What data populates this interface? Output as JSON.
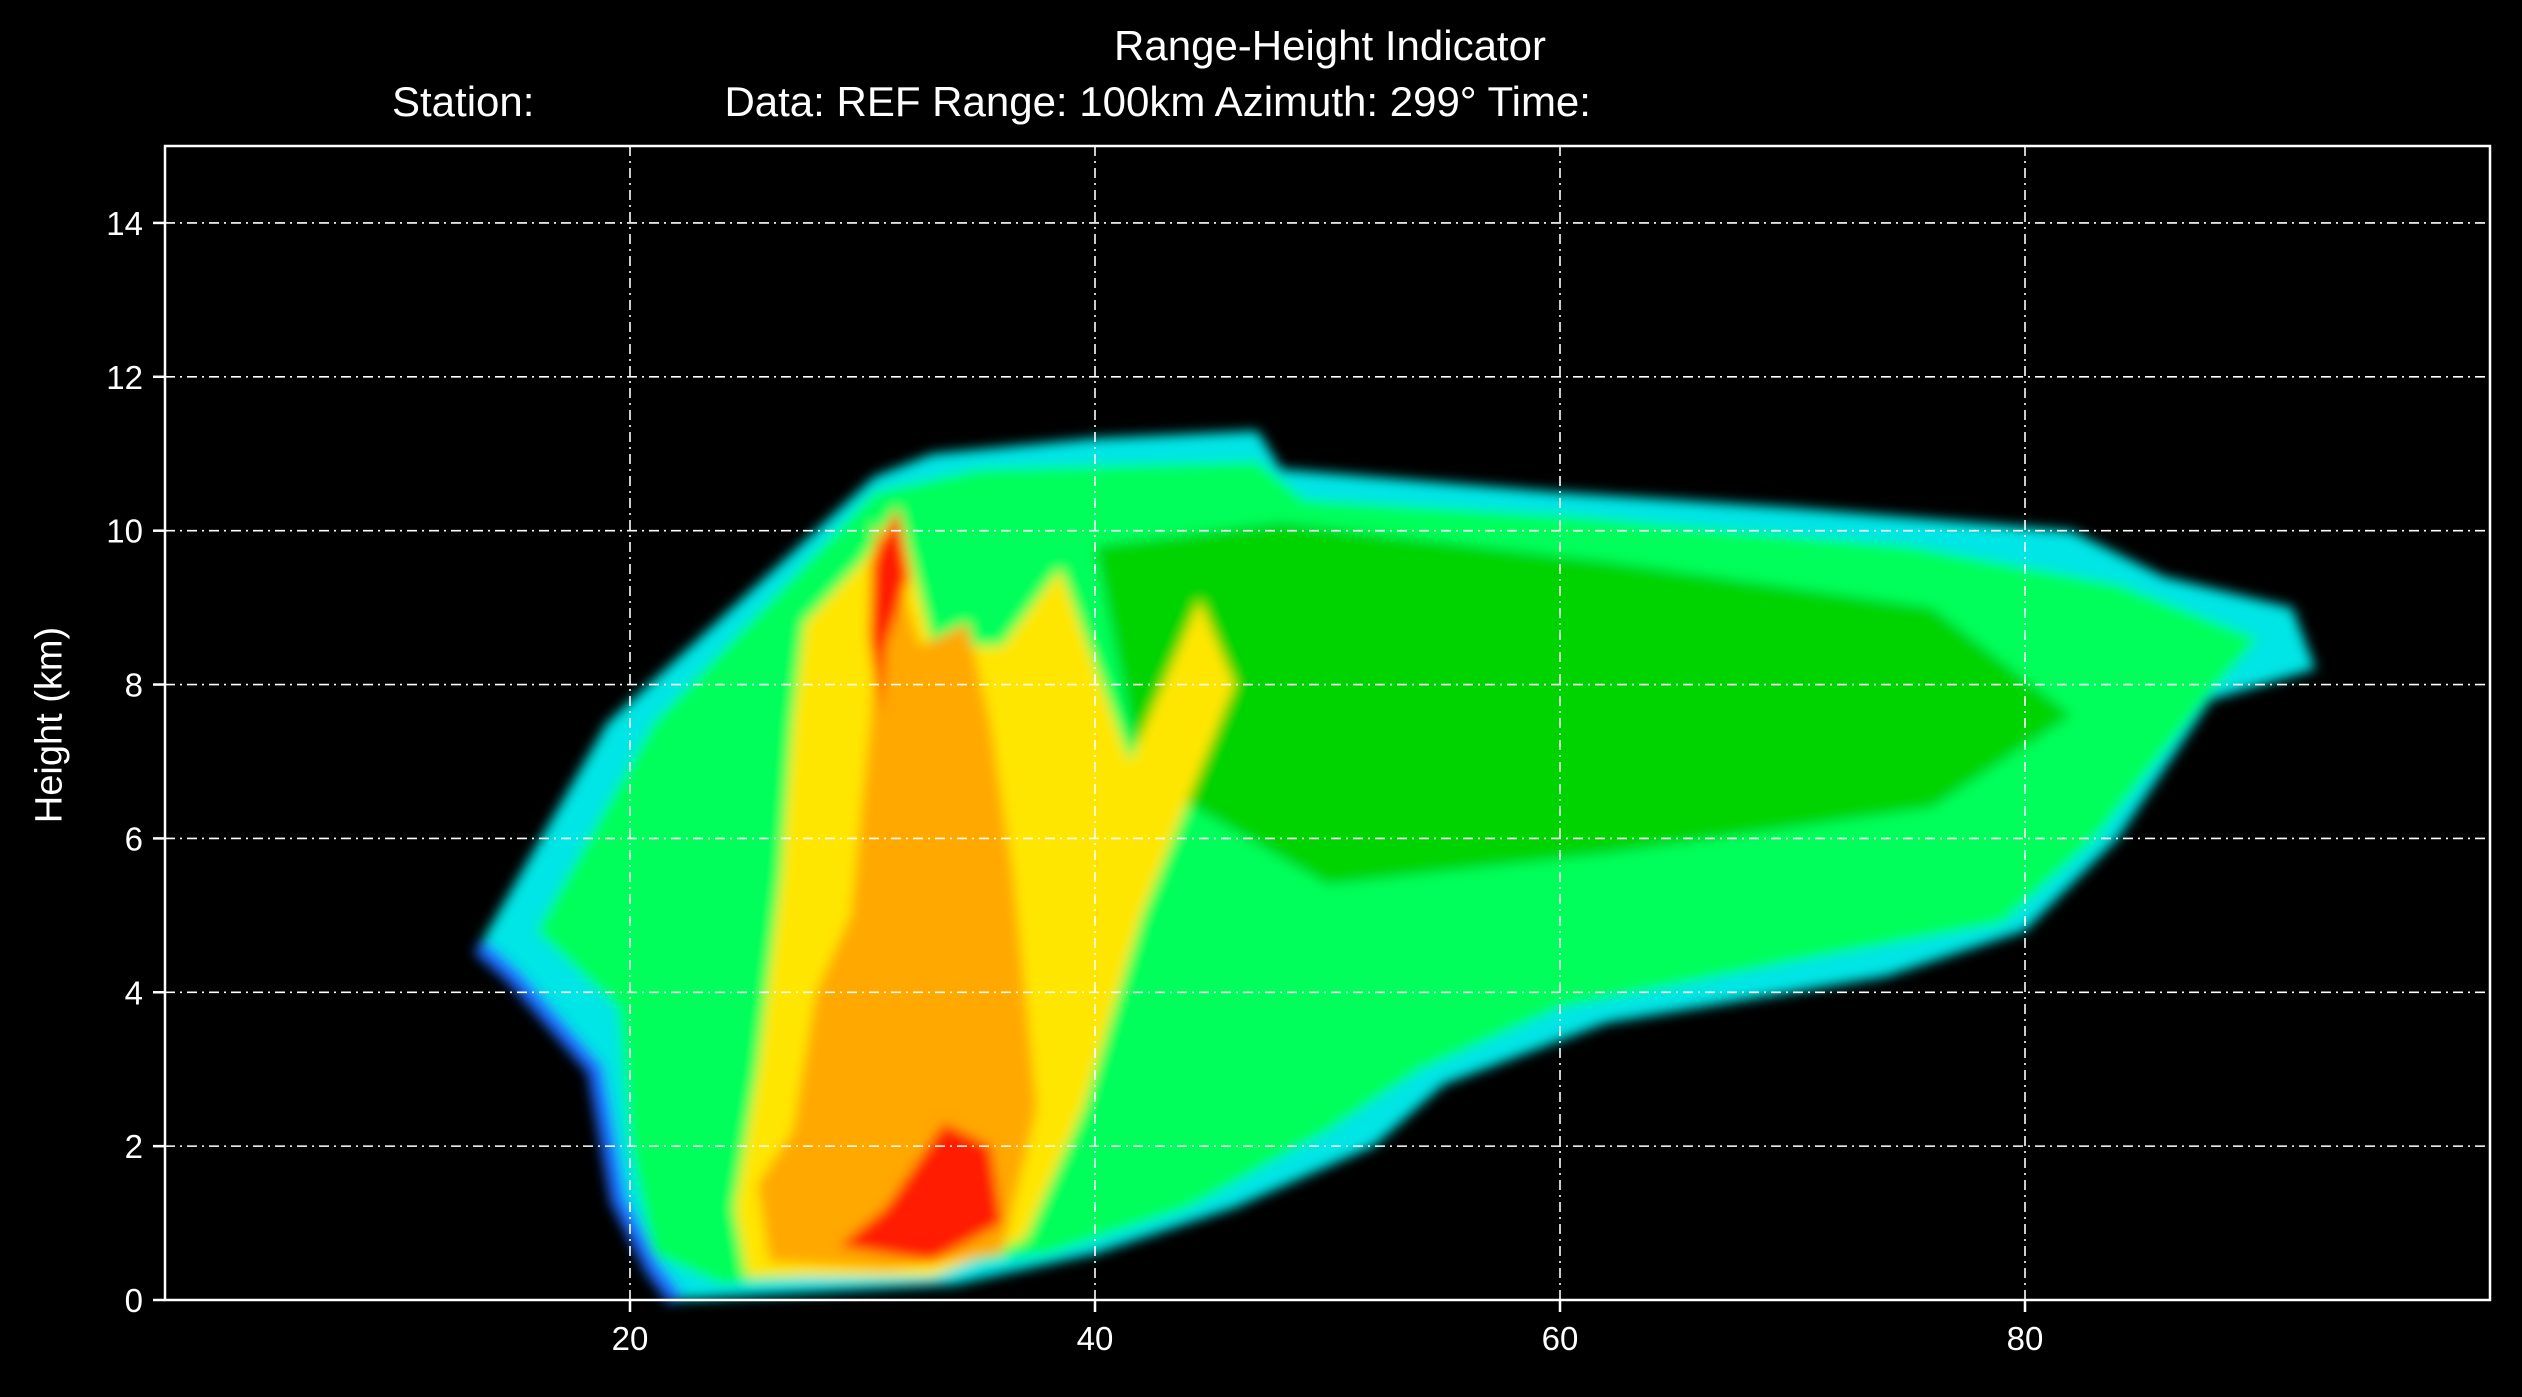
{
  "chart_data": {
    "type": "heatmap",
    "title": "Range-Height Indicator",
    "subtitle": {
      "station": "Station:",
      "data": "Data: REF Range: 100km Azimuth: 299° Time:"
    },
    "xlabel": "",
    "ylabel": "Height (km)",
    "xlim": [
      0,
      100
    ],
    "ylim": [
      0,
      15
    ],
    "x_ticks": [
      20,
      40,
      60,
      80
    ],
    "y_ticks": [
      0,
      2,
      4,
      6,
      8,
      10,
      12,
      14
    ],
    "grid": true,
    "grid_style": "dash-dot",
    "background": "#000000",
    "colors": {
      "blue": "#1e6bff",
      "cyan": "#00e5e5",
      "light_green": "#00ff5a",
      "green": "#00d400",
      "dark_green": "#009600",
      "yellow": "#ffe600",
      "orange": "#ffa800",
      "red": "#ff1a00"
    },
    "regions": [
      {
        "name": "echo-envelope-outer",
        "color": "cyan",
        "outline": [
          [
            13.5,
            4.6
          ],
          [
            19,
            7.5
          ],
          [
            30.5,
            10.7
          ],
          [
            33,
            11.0
          ],
          [
            40,
            11.2
          ],
          [
            47,
            11.3
          ],
          [
            48,
            10.8
          ],
          [
            60,
            10.5
          ],
          [
            70,
            10.3
          ],
          [
            82,
            10.0
          ],
          [
            86,
            9.4
          ],
          [
            91.5,
            9.0
          ],
          [
            92.5,
            8.2
          ],
          [
            88,
            7.8
          ],
          [
            84,
            6.0
          ],
          [
            80,
            4.8
          ],
          [
            74,
            4.2
          ],
          [
            62,
            3.6
          ],
          [
            55,
            2.8
          ],
          [
            52,
            2.0
          ],
          [
            46,
            1.2
          ],
          [
            40,
            0.6
          ],
          [
            34,
            0.2
          ],
          [
            22,
            0.0
          ],
          [
            21,
            0.4
          ],
          [
            19.5,
            1.3
          ],
          [
            18.5,
            3.0
          ],
          [
            15,
            4.2
          ]
        ]
      },
      {
        "name": "green-core",
        "color": "light_green",
        "outline": [
          [
            16,
            4.8
          ],
          [
            21,
            7.5
          ],
          [
            30.5,
            10.5
          ],
          [
            35,
            10.8
          ],
          [
            47,
            10.9
          ],
          [
            49,
            10.4
          ],
          [
            60,
            10.2
          ],
          [
            75,
            9.8
          ],
          [
            84,
            9.3
          ],
          [
            90,
            8.6
          ],
          [
            88,
            7.9
          ],
          [
            83,
            6.0
          ],
          [
            79,
            4.9
          ],
          [
            70,
            4.4
          ],
          [
            60,
            3.8
          ],
          [
            54,
            3.0
          ],
          [
            50,
            2.2
          ],
          [
            44,
            1.2
          ],
          [
            38,
            0.6
          ],
          [
            24,
            0.2
          ],
          [
            21,
            0.6
          ],
          [
            20,
            2.0
          ],
          [
            19.5,
            3.8
          ]
        ]
      },
      {
        "name": "mid-green-band",
        "color": "green",
        "outline": [
          [
            40,
            9.8
          ],
          [
            48,
            10.1
          ],
          [
            62,
            9.6
          ],
          [
            76,
            9.0
          ],
          [
            82,
            7.6
          ],
          [
            76,
            6.4
          ],
          [
            62,
            5.8
          ],
          [
            50,
            5.4
          ],
          [
            42,
            6.8
          ]
        ]
      },
      {
        "name": "yellow-core",
        "color": "yellow",
        "outline": [
          [
            27.5,
            8.8
          ],
          [
            30,
            9.6
          ],
          [
            31.5,
            10.3
          ],
          [
            33,
            8.5
          ],
          [
            36,
            8.5
          ],
          [
            38.5,
            9.5
          ],
          [
            41.5,
            7.0
          ],
          [
            44.5,
            9.1
          ],
          [
            46,
            8.0
          ],
          [
            42,
            5.0
          ],
          [
            39.5,
            2.5
          ],
          [
            37,
            0.8
          ],
          [
            33,
            0.3
          ],
          [
            25,
            0.3
          ],
          [
            24.5,
            1.2
          ],
          [
            25.5,
            3.0
          ],
          [
            26.5,
            5.5
          ],
          [
            27,
            7.5
          ]
        ]
      },
      {
        "name": "orange-core",
        "color": "orange",
        "outline": [
          [
            30.5,
            10.1
          ],
          [
            31.5,
            9.4
          ],
          [
            32.5,
            8.5
          ],
          [
            34.5,
            8.8
          ],
          [
            35.5,
            7.5
          ],
          [
            36.5,
            5.5
          ],
          [
            37.5,
            2.5
          ],
          [
            36,
            0.6
          ],
          [
            31,
            0.4
          ],
          [
            26,
            0.5
          ],
          [
            25.5,
            1.5
          ],
          [
            27,
            2.2
          ],
          [
            28,
            4.0
          ],
          [
            29.5,
            5.0
          ],
          [
            30.5,
            8.0
          ]
        ]
      },
      {
        "name": "red-core",
        "color": "red",
        "outline": [
          [
            31.5,
            10.3
          ],
          [
            32,
            9.4
          ],
          [
            31,
            8.5
          ],
          [
            30.8,
            7.6
          ],
          [
            30.3,
            8.6
          ],
          [
            30.4,
            9.6
          ]
        ]
      },
      {
        "name": "red-base",
        "color": "red",
        "outline": [
          [
            29,
            0.7
          ],
          [
            31,
            1.2
          ],
          [
            33.5,
            2.3
          ],
          [
            35.5,
            2.0
          ],
          [
            36,
            1.0
          ],
          [
            33,
            0.5
          ]
        ]
      }
    ]
  }
}
